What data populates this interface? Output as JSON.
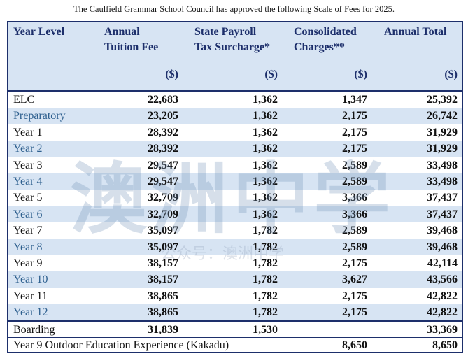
{
  "caption": "The Caulfield Grammar School Council has approved the following Scale of Fees for 2025.",
  "headers": {
    "year_level": "Year Level",
    "tuition_line1": "Annual",
    "tuition_line2": "Tuition Fee",
    "payroll_line1": "State Payroll",
    "payroll_line2": "Tax Surcharge*",
    "consolidated_line1": "Consolidated",
    "consolidated_line2": "Charges**",
    "total": "Annual Total",
    "unit": "($)"
  },
  "rows": [
    {
      "level": "ELC",
      "tuition": "22,683",
      "payroll": "1,362",
      "consolidated": "1,347",
      "total": "25,392"
    },
    {
      "level": "Preparatory",
      "tuition": "23,205",
      "payroll": "1,362",
      "consolidated": "2,175",
      "total": "26,742"
    },
    {
      "level": "Year 1",
      "tuition": "28,392",
      "payroll": "1,362",
      "consolidated": "2,175",
      "total": "31,929"
    },
    {
      "level": "Year 2",
      "tuition": "28,392",
      "payroll": "1,362",
      "consolidated": "2,175",
      "total": "31,929"
    },
    {
      "level": "Year 3",
      "tuition": "29,547",
      "payroll": "1,362",
      "consolidated": "2,589",
      "total": "33,498"
    },
    {
      "level": "Year 4",
      "tuition": "29,547",
      "payroll": "1,362",
      "consolidated": "2,589",
      "total": "33,498"
    },
    {
      "level": "Year 5",
      "tuition": "32,709",
      "payroll": "1,362",
      "consolidated": "3,366",
      "total": "37,437"
    },
    {
      "level": "Year 6",
      "tuition": "32,709",
      "payroll": "1,362",
      "consolidated": "3,366",
      "total": "37,437"
    },
    {
      "level": "Year 7",
      "tuition": "35,097",
      "payroll": "1,782",
      "consolidated": "2,589",
      "total": "39,468"
    },
    {
      "level": "Year 8",
      "tuition": "35,097",
      "payroll": "1,782",
      "consolidated": "2,589",
      "total": "39,468"
    },
    {
      "level": "Year 9",
      "tuition": "38,157",
      "payroll": "1,782",
      "consolidated": "2,175",
      "total": "42,114"
    },
    {
      "level": "Year 10",
      "tuition": "38,157",
      "payroll": "1,782",
      "consolidated": "3,627",
      "total": "43,566"
    },
    {
      "level": "Year 11",
      "tuition": "38,865",
      "payroll": "1,782",
      "consolidated": "2,175",
      "total": "42,822"
    },
    {
      "level": "Year 12",
      "tuition": "38,865",
      "payroll": "1,782",
      "consolidated": "2,175",
      "total": "42,822"
    }
  ],
  "boarding": {
    "level": "Boarding",
    "tuition": "31,839",
    "payroll": "1,530",
    "total": "33,369"
  },
  "kakadu": {
    "label": "Year 9 Outdoor Education Experience (Kakadu)",
    "consolidated": "8,650",
    "total": "8,650"
  },
  "watermark": {
    "big": "澳洲中学",
    "small": "公众号：澳洲中学"
  },
  "colors": {
    "header_bg": "#d7e4f3",
    "header_text": "#1d2f6b",
    "alt_row_bg": "#d7e4f3",
    "alt_row_label": "#2d5f8e"
  }
}
